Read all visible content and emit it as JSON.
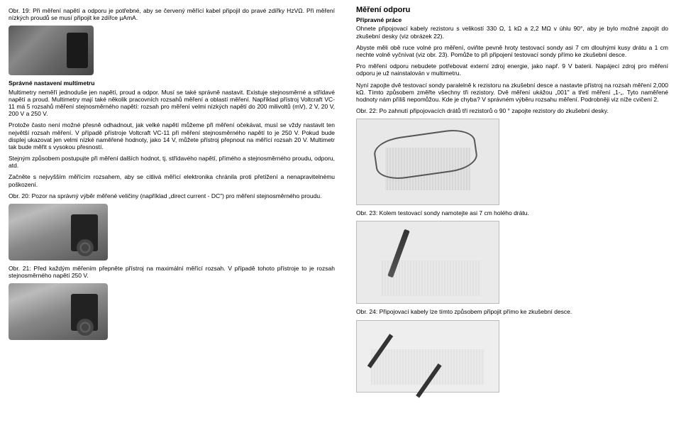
{
  "left": {
    "caption19": "Obr. 19: Při měření napětí a odporu je potřebné, aby se červený měřící kabel připojil do pravé zdířky HzVΩ. Při měření nízkých proudů se musí připojit ke zdířce µAmA.",
    "heading1": "Správné nastavení multimetru",
    "para1": "Multimetry neměří jednoduše jen napětí, proud a odpor. Musí se také správně nastavit. Existuje stejnosměrné a střídavé napětí a proud. Multimetry mají také několik pracovních rozsahů měření a oblastí měření. Například přístroj Voltcraft VC-11 má 5 rozsahů měření stejnosměrného napětí: rozsah pro měření velmi nízkých napětí do 200 milivoltů (mV), 2 V, 20 V, 200 V a 250 V.",
    "para2": "Protože často není možné přesně odhadnout, jak velké napětí můžeme při měření očekávat, musí se vždy nastavit ten největší rozsah měření. V případě přístroje Voltcraft VC-11 při měření stejnosměrného napětí to je 250 V. Pokud bude displej ukazovat jen velmi nízké naměřené hodnoty, jako 14 V, můžete přístroj přepnout na měřící rozsah 20 V. Multimetr tak bude měřit s vysokou přesností.",
    "para3": "Stejným způsobem postupujte při měření dalších hodnot, tj. střídavého napětí, přímého a stejnosměrného proudu, odporu, atd.",
    "para4": "Začněte s nejvyšším měřícím rozsahem, aby se citlivá měřící elektronika chránila proti přetížení a nenapravitelnému poškození.",
    "caption20": "Obr. 20: Pozor na správný výběr měřené veličiny (například „direct current - DC\") pro měření stejnosměrného proudu.",
    "caption21": "Obr. 21: Před každým měřením přepněte přístroj na maximální měřící rozsah. V případě tohoto přístroje to je rozsah stejnosměrného napětí 250 V."
  },
  "right": {
    "title": "Měření odporu",
    "subheading": "Přípravné práce",
    "para1": "Ohnete připojovací kabely rezistoru s velikostí 330 Ω, 1 kΩ a 2,2 MΩ v úhlu 90°, aby je bylo možné zapojit do zkušební desky (viz obrázek 22).",
    "para2": "Abyste měli obě ruce volné pro měření, oviňte pevně hroty testovací sondy asi 7 cm dlouhými kusy drátu a 1 cm nechte volně vyčnívat (viz obr. 23). Pomůže to při připojení testovací sondy přímo ke zkušební desce.",
    "para3": "Pro měření odporu nebudete potřebovat externí zdroj energie, jako např. 9 V baterii. Napájecí zdroj pro měření odporu je už nainstalován v multimetru.",
    "para4": "Nyní zapojte dvě testovací sondy paralelně k rezistoru na zkušební desce a nastavte přístroj na rozsah měření 2,000 kΩ. Tímto způsobem změřte všechny tři rezistory. Dvě měření ukážou „001\" a třetí měření „1-„. Tyto naměřené hodnoty nám příliš nepomůžou. Kde je chyba? V správném výběru rozsahu měření. Podrobněji viz níže cvičení 2.",
    "caption22": "Obr. 22: Po zahnutí připojovacích drátů tří rezistorů o 90 ° zapojte rezistory do zkušební desky.",
    "caption23": "Obr. 23: Kolem testovací sondy namotejte asi 7 cm holého drátu.",
    "caption24": "Obr. 24: Připojovací kabely lze tímto způsobem připojit přímo ke zkušební desce."
  }
}
